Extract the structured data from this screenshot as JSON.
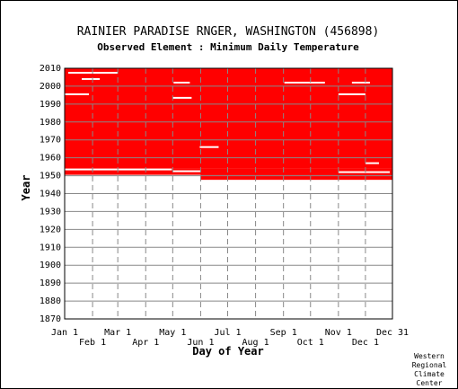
{
  "chart_data": {
    "type": "heatmap",
    "title": "RAINIER PARADISE RNGER, WASHINGTON   (456898)",
    "subtitle": "Observed Element : Minimum Daily Temperature",
    "xlabel": "Day of Year",
    "ylabel": "Year",
    "xlim": [
      1,
      365
    ],
    "ylim": [
      1870,
      2010
    ],
    "x_ticks_top": [
      {
        "day": 1,
        "label": "Jan 1"
      },
      {
        "day": 60,
        "label": "Mar 1"
      },
      {
        "day": 121,
        "label": "May 1"
      },
      {
        "day": 182,
        "label": "Jul 1"
      },
      {
        "day": 244,
        "label": "Sep 1"
      },
      {
        "day": 305,
        "label": "Nov 1"
      },
      {
        "day": 365,
        "label": "Dec 31"
      }
    ],
    "x_ticks_bottom": [
      {
        "day": 32,
        "label": "Feb 1"
      },
      {
        "day": 91,
        "label": "Apr 1"
      },
      {
        "day": 152,
        "label": "Jun 1"
      },
      {
        "day": 213,
        "label": "Aug 1"
      },
      {
        "day": 274,
        "label": "Oct 1"
      },
      {
        "day": 335,
        "label": "Dec 1"
      }
    ],
    "y_ticks": [
      1870,
      1880,
      1890,
      1900,
      1910,
      1920,
      1930,
      1940,
      1950,
      1960,
      1970,
      1980,
      1990,
      2000,
      2010
    ],
    "grid": true,
    "observed_color": "#ff0000",
    "observed_blocks": [
      {
        "y_from": 1954,
        "y_to": 2010,
        "x_from": 1,
        "x_to": 365
      },
      {
        "y_from": 1950.5,
        "y_to": 1954,
        "x_from": 1,
        "x_to": 365
      },
      {
        "y_from": 1947.7,
        "y_to": 1950.5,
        "x_from": 152,
        "x_to": 365
      }
    ],
    "gaps": [
      {
        "year": 2007.5,
        "x_from": 5,
        "x_to": 60
      },
      {
        "year": 2004,
        "x_from": 20,
        "x_to": 40
      },
      {
        "year": 2002,
        "x_from": 122,
        "x_to": 140
      },
      {
        "year": 2002,
        "x_from": 245,
        "x_to": 290
      },
      {
        "year": 2002,
        "x_from": 320,
        "x_to": 340
      },
      {
        "year": 1995.5,
        "x_from": 1,
        "x_to": 28
      },
      {
        "year": 1995.5,
        "x_from": 305,
        "x_to": 335
      },
      {
        "year": 1993.5,
        "x_from": 121,
        "x_to": 142
      },
      {
        "year": 1966,
        "x_from": 151,
        "x_to": 172
      },
      {
        "year": 1957,
        "x_from": 335,
        "x_to": 350
      },
      {
        "year": 1953.5,
        "x_from": 1,
        "x_to": 120
      },
      {
        "year": 1952.5,
        "x_from": 121,
        "x_to": 152
      },
      {
        "year": 1952,
        "x_from": 305,
        "x_to": 362
      }
    ],
    "credit": [
      "Western",
      "Regional",
      "Climate",
      "Center"
    ]
  }
}
